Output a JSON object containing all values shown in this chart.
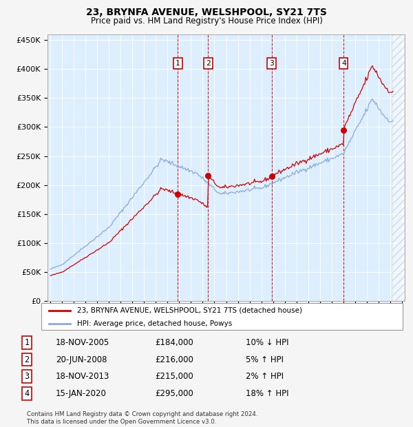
{
  "title": "23, BRYNFA AVENUE, WELSHPOOL, SY21 7TS",
  "subtitle": "Price paid vs. HM Land Registry's House Price Index (HPI)",
  "hpi_color": "#88aadd",
  "sale_color": "#cc0000",
  "vline_color": "#cc0000",
  "background_chart": "#ddeeff",
  "background_fig": "#f5f5f5",
  "ylim": [
    0,
    460000
  ],
  "yticks": [
    0,
    50000,
    100000,
    150000,
    200000,
    250000,
    300000,
    350000,
    400000,
    450000
  ],
  "ytick_labels": [
    "£0",
    "£50K",
    "£100K",
    "£150K",
    "£200K",
    "£250K",
    "£300K",
    "£350K",
    "£400K",
    "£450K"
  ],
  "xlim_start": 1994.75,
  "xlim_end": 2025.25,
  "sale_dates": [
    2005.88,
    2008.47,
    2013.88,
    2020.04
  ],
  "sale_prices": [
    184000,
    216000,
    215000,
    295000
  ],
  "sale_labels": [
    "1",
    "2",
    "3",
    "4"
  ],
  "legend_sale_label": "23, BRYNFA AVENUE, WELSHPOOL, SY21 7TS (detached house)",
  "legend_hpi_label": "HPI: Average price, detached house, Powys",
  "table_rows": [
    [
      "1",
      "18-NOV-2005",
      "£184,000",
      "10% ↓ HPI"
    ],
    [
      "2",
      "20-JUN-2008",
      "£216,000",
      "5% ↑ HPI"
    ],
    [
      "3",
      "18-NOV-2013",
      "£215,000",
      "2% ↑ HPI"
    ],
    [
      "4",
      "15-JAN-2020",
      "£295,000",
      "18% ↑ HPI"
    ]
  ],
  "footnote": "Contains HM Land Registry data © Crown copyright and database right 2024.\nThis data is licensed under the Open Government Licence v3.0."
}
